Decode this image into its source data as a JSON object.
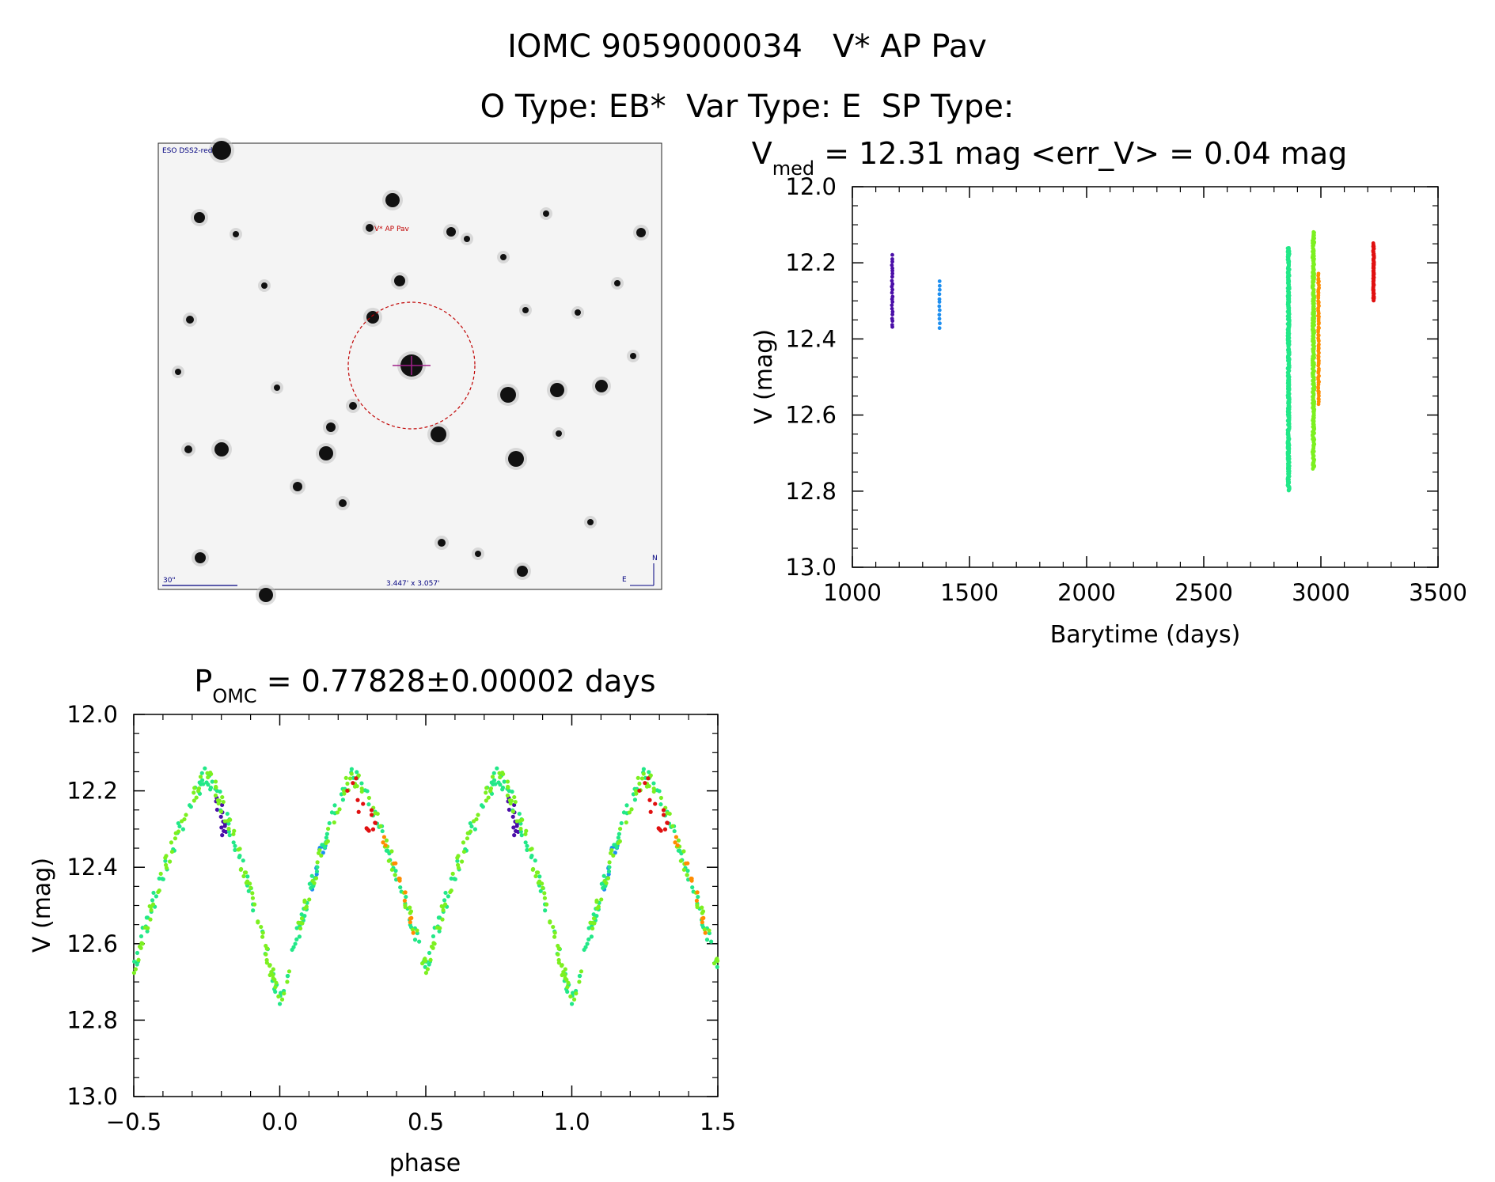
{
  "header": {
    "line1": "IOMC 9059000034   V* AP Pav",
    "line2": "O Type: EB*  Var Type: E  SP Type:"
  },
  "finder": {
    "survey_label": "ESO DSS2-red",
    "target_label": "V* AP Pav",
    "scale_label": "30\"",
    "fov_label": "3.447' x 3.057'",
    "north": "N",
    "east": "E",
    "colors": {
      "circle": "#c00000",
      "labels": "#00007f"
    }
  },
  "chart_data": [
    {
      "type": "scatter",
      "title": {
        "main": "V",
        "sub": "med",
        "rest": " = 12.31 mag <err_V> = 0.04 mag"
      },
      "xlabel": "Barytime (days)",
      "ylabel": "V (mag)",
      "xlim": [
        1000,
        3500
      ],
      "ylim": [
        13.0,
        12.0
      ],
      "y_inverted": true,
      "xticks": [
        1000,
        1500,
        2000,
        2500,
        3000,
        3500
      ],
      "xtick_labels": [
        "1000",
        "1500",
        "2000",
        "2500",
        "3000",
        "3500"
      ],
      "yticks": [
        12.0,
        12.2,
        12.4,
        12.6,
        12.8,
        13.0
      ],
      "ytick_labels": [
        "12.0",
        "12.2",
        "12.4",
        "12.6",
        "12.8",
        "13.0"
      ],
      "series": [
        {
          "name": "group 1",
          "color": "#4b0fa8",
          "x": 1170,
          "n": 24,
          "vmin": 12.18,
          "vmax": 12.37
        },
        {
          "name": "group 2",
          "color": "#1e8ff0",
          "x": 1372,
          "n": 12,
          "vmin": 12.25,
          "vmax": 12.37
        },
        {
          "name": "group 3",
          "color": "#22e888",
          "x": 2862,
          "n": 420,
          "vmin": 12.16,
          "vmax": 12.8
        },
        {
          "name": "group 4",
          "color": "#7cf020",
          "x": 2968,
          "n": 300,
          "vmin": 12.12,
          "vmax": 12.74
        },
        {
          "name": "group 5",
          "color": "#ff8c00",
          "x": 2990,
          "n": 70,
          "vmin": 12.23,
          "vmax": 12.57
        },
        {
          "name": "group 6",
          "color": "#e01010",
          "x": 3225,
          "n": 80,
          "vmin": 12.15,
          "vmax": 12.3
        }
      ]
    },
    {
      "type": "scatter",
      "title": {
        "main": "P",
        "sub": "OMC",
        "rest": " = 0.77828±0.00002 days"
      },
      "xlabel": "phase",
      "ylabel": "V (mag)",
      "period_days": 0.77828,
      "xlim": [
        -0.5,
        1.5
      ],
      "ylim": [
        13.0,
        12.0
      ],
      "y_inverted": true,
      "xticks": [
        -0.5,
        0.0,
        0.5,
        1.0,
        1.5
      ],
      "xtick_labels": [
        "−0.5",
        "0.0",
        "0.5",
        "1.0",
        "1.5"
      ],
      "yticks": [
        12.0,
        12.2,
        12.4,
        12.6,
        12.8,
        13.0
      ],
      "ytick_labels": [
        "12.0",
        "12.2",
        "12.4",
        "12.6",
        "12.8",
        "13.0"
      ],
      "light_curve": {
        "max_mag": 12.16,
        "primary_min_mag": 12.76,
        "secondary_min_mag": 12.66,
        "maxima_phase": [
          0.25,
          0.75
        ]
      },
      "series": [
        {
          "name": "group 1",
          "color": "#4b0fa8",
          "phase_range": [
            0.78,
            0.82
          ]
        },
        {
          "name": "group 2",
          "color": "#1e8ff0",
          "phase_range": [
            0.11,
            0.16
          ]
        },
        {
          "name": "group 3",
          "color": "#22e888",
          "phase_range": [
            0.0,
            1.0
          ]
        },
        {
          "name": "group 4",
          "color": "#7cf020",
          "phase_range": [
            0.0,
            1.0
          ]
        },
        {
          "name": "group 5",
          "color": "#ff8c00",
          "phase_range": [
            0.35,
            0.47
          ]
        },
        {
          "name": "group 6",
          "color": "#e01010",
          "phase_range": [
            0.22,
            0.33
          ]
        }
      ]
    }
  ]
}
